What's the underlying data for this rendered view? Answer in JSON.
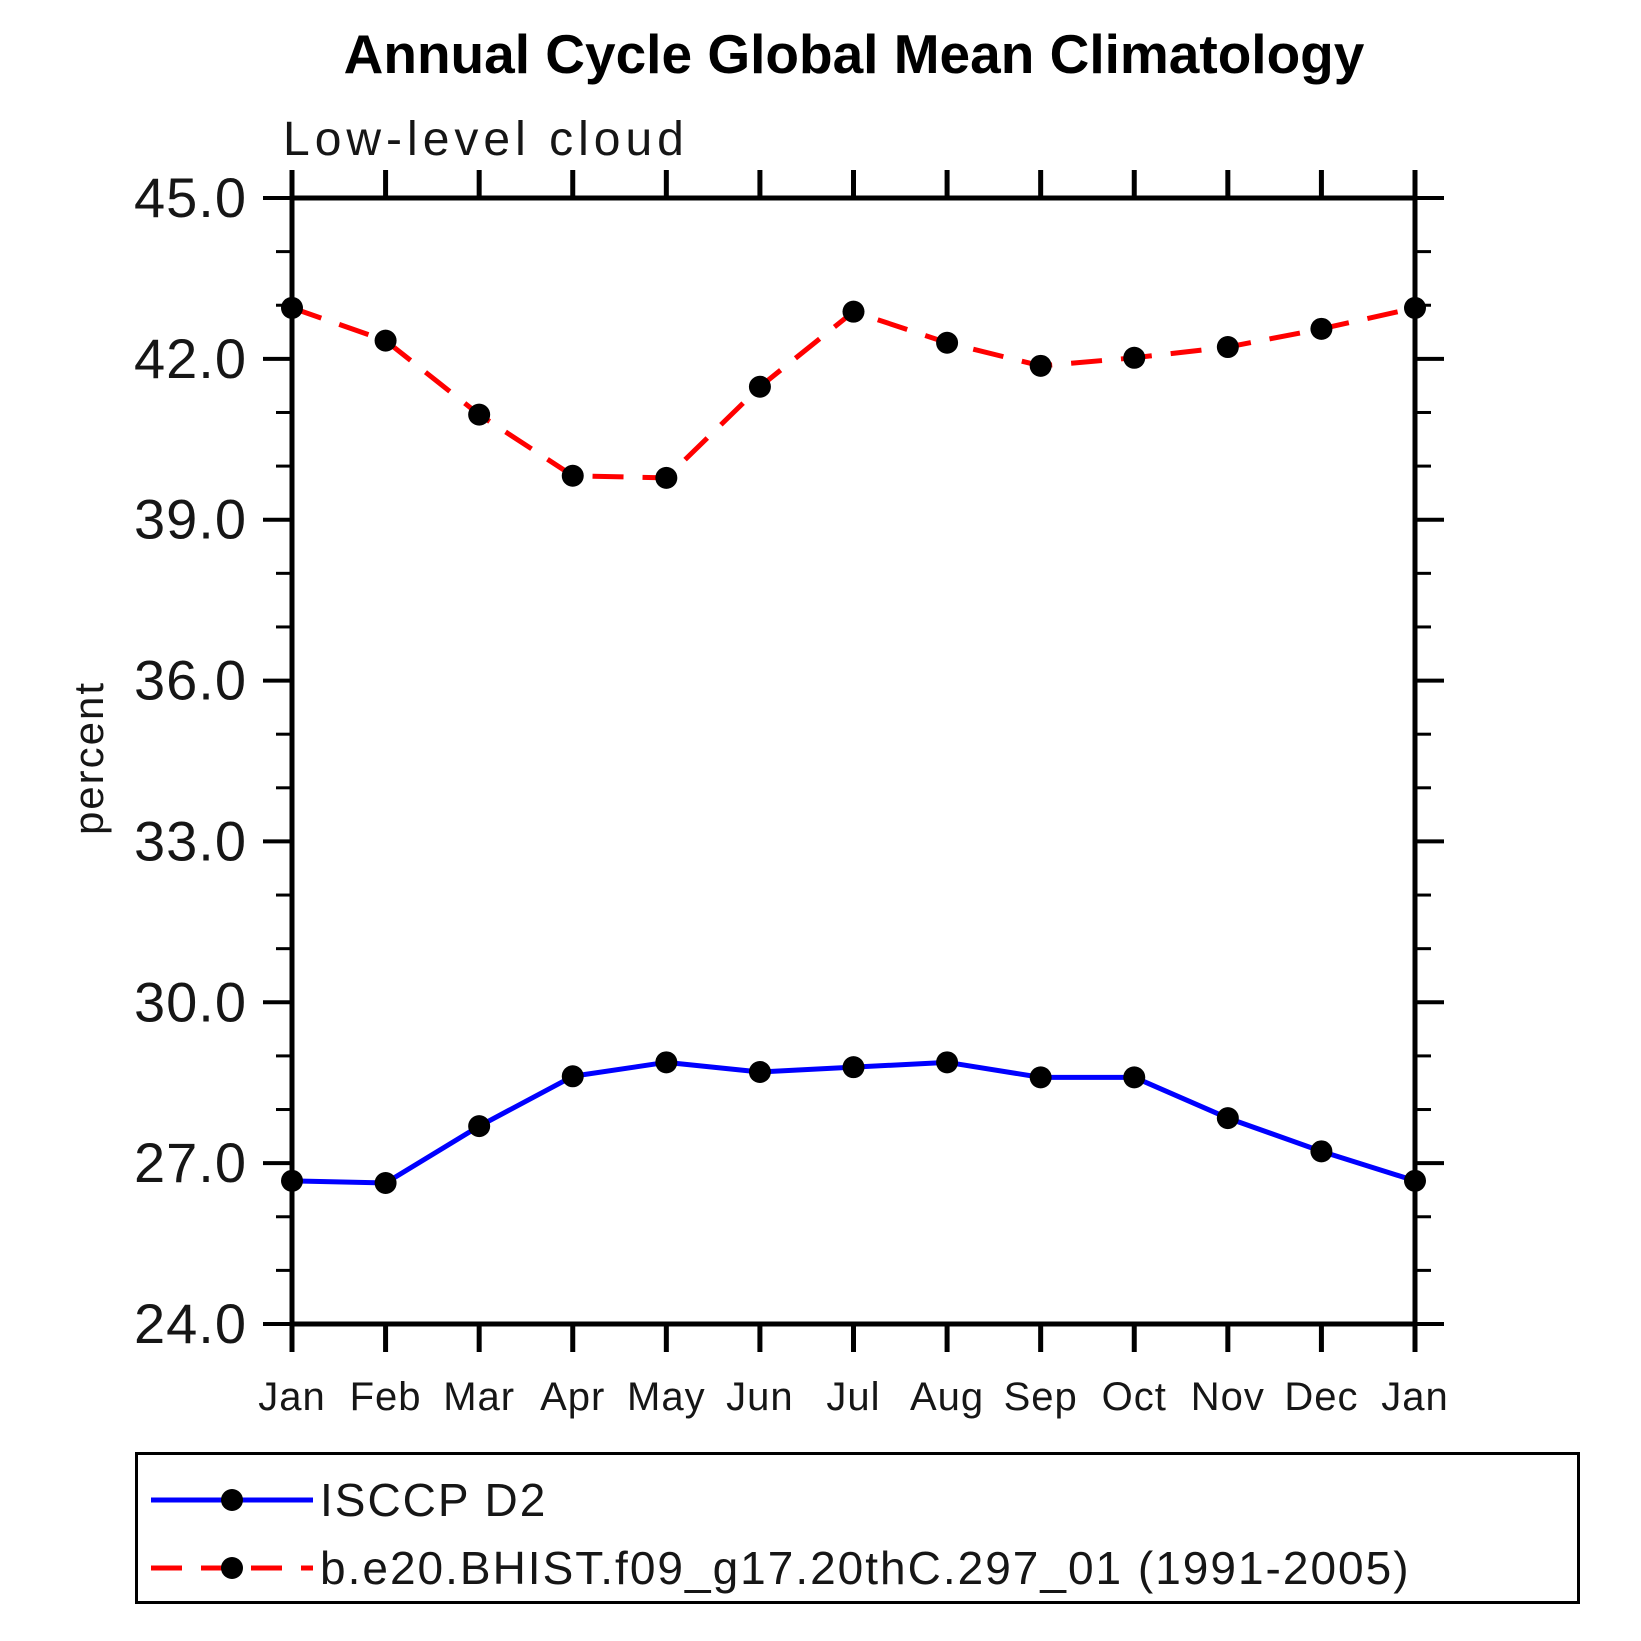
{
  "title": "Annual Cycle Global Mean Climatology",
  "legend": {
    "items": [
      {
        "label": "ISCCP D2",
        "color": "#0000ff",
        "line_style": "solid",
        "marker": "filled-circle"
      },
      {
        "label": "b.e20.BHIST.f09_g17.20thC.297_01 (1991-2005)",
        "color": "#ff0000",
        "line_style": "dashed",
        "marker": "filled-circle"
      }
    ]
  },
  "chart_data": {
    "type": "line",
    "main_title": "Annual Cycle Global Mean Climatology",
    "title": "Low-level cloud",
    "ylabel": "percent",
    "xlabel": "",
    "categories": [
      "Jan",
      "Feb",
      "Mar",
      "Apr",
      "May",
      "Jun",
      "Jul",
      "Aug",
      "Sep",
      "Oct",
      "Nov",
      "Dec",
      "Jan"
    ],
    "ylim": [
      24.0,
      45.0
    ],
    "ytick_step": 3.0,
    "yminor_step": 1.0,
    "ytick_labels": [
      "24.0",
      "27.0",
      "30.0",
      "33.0",
      "36.0",
      "39.0",
      "42.0",
      "45.0"
    ],
    "grid": false,
    "legend_position": "bottom-left-box",
    "axis_color": "#000000",
    "marker_color": "#000000",
    "series": [
      {
        "name": "ISCCP D2",
        "color": "#0000ff",
        "line_style": "solid",
        "marker": "circle",
        "values": [
          26.67,
          26.63,
          27.69,
          28.62,
          28.88,
          28.7,
          28.79,
          28.88,
          28.6,
          28.6,
          27.84,
          27.22,
          26.67
        ]
      },
      {
        "name": "b.e20.BHIST.f09_g17.20thC.297_01 (1991-2005)",
        "color": "#ff0000",
        "line_style": "dashed",
        "marker": "circle",
        "values": [
          42.95,
          42.34,
          40.96,
          39.82,
          39.78,
          41.48,
          42.88,
          42.3,
          41.87,
          42.02,
          42.22,
          42.56,
          42.95
        ]
      }
    ]
  }
}
